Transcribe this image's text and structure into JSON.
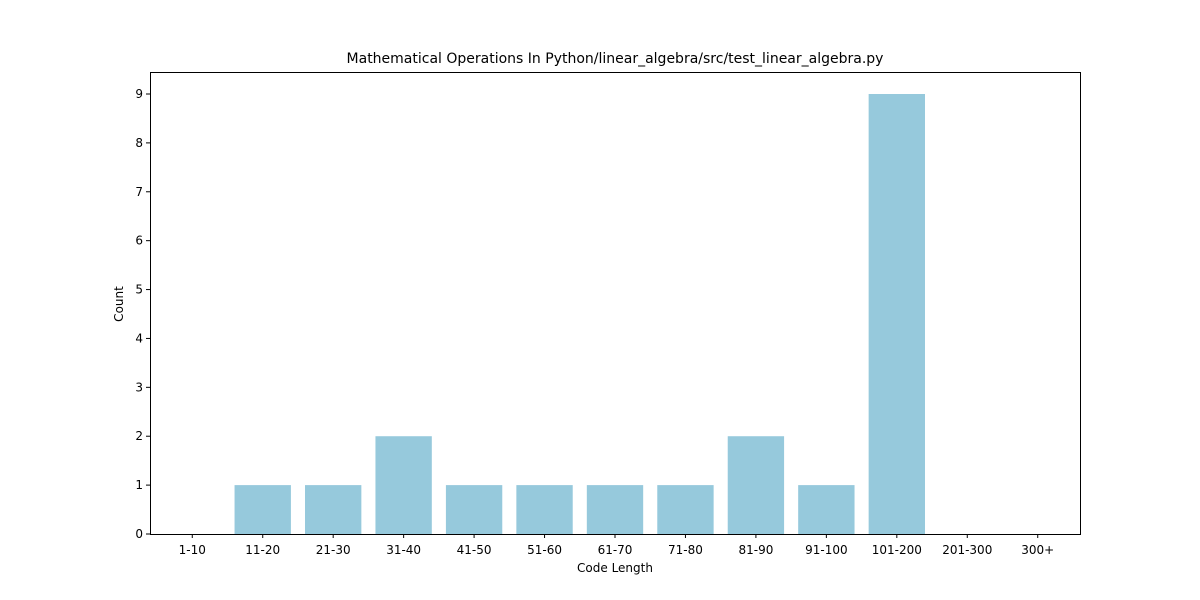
{
  "chart_data": {
    "type": "bar",
    "title": "Mathematical Operations In Python/linear_algebra/src/test_linear_algebra.py",
    "xlabel": "Code Length",
    "ylabel": "Count",
    "categories": [
      "1-10",
      "11-20",
      "21-30",
      "31-40",
      "41-50",
      "51-60",
      "61-70",
      "71-80",
      "81-90",
      "91-100",
      "101-200",
      "201-300",
      "300+"
    ],
    "values": [
      0,
      1,
      1,
      2,
      1,
      1,
      1,
      1,
      2,
      1,
      9,
      0,
      0
    ],
    "yticks": [
      "0",
      "1",
      "2",
      "3",
      "4",
      "5",
      "6",
      "7",
      "8",
      "9"
    ],
    "ylim": [
      0,
      9.45
    ],
    "bar_color": "#96c9dc",
    "grid": false,
    "legend": "none"
  }
}
